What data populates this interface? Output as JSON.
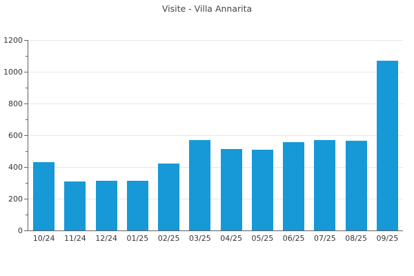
{
  "page": {
    "background": "#ffffff"
  },
  "chart_data": {
    "type": "bar",
    "title": "Visite - Villa Annarita",
    "categories": [
      "10/24",
      "11/24",
      "12/24",
      "01/25",
      "02/25",
      "03/25",
      "04/25",
      "05/25",
      "06/25",
      "07/25",
      "08/25",
      "09/25"
    ],
    "values": [
      430,
      310,
      315,
      315,
      420,
      570,
      515,
      510,
      555,
      570,
      565,
      1070
    ],
    "xlabel": "",
    "ylabel": "",
    "ylim": [
      0,
      1200
    ],
    "yticks": [
      0,
      200,
      400,
      600,
      800,
      1000,
      1200
    ],
    "minor_ytick_step": 100,
    "grid": "horizontal-major-only",
    "legend": "none",
    "bar_color": "#1699d6",
    "axis_color": "#5f5f5f",
    "grid_color": "#e6e6e6",
    "tick_label_color": "#333333",
    "title_color": "#444444"
  }
}
